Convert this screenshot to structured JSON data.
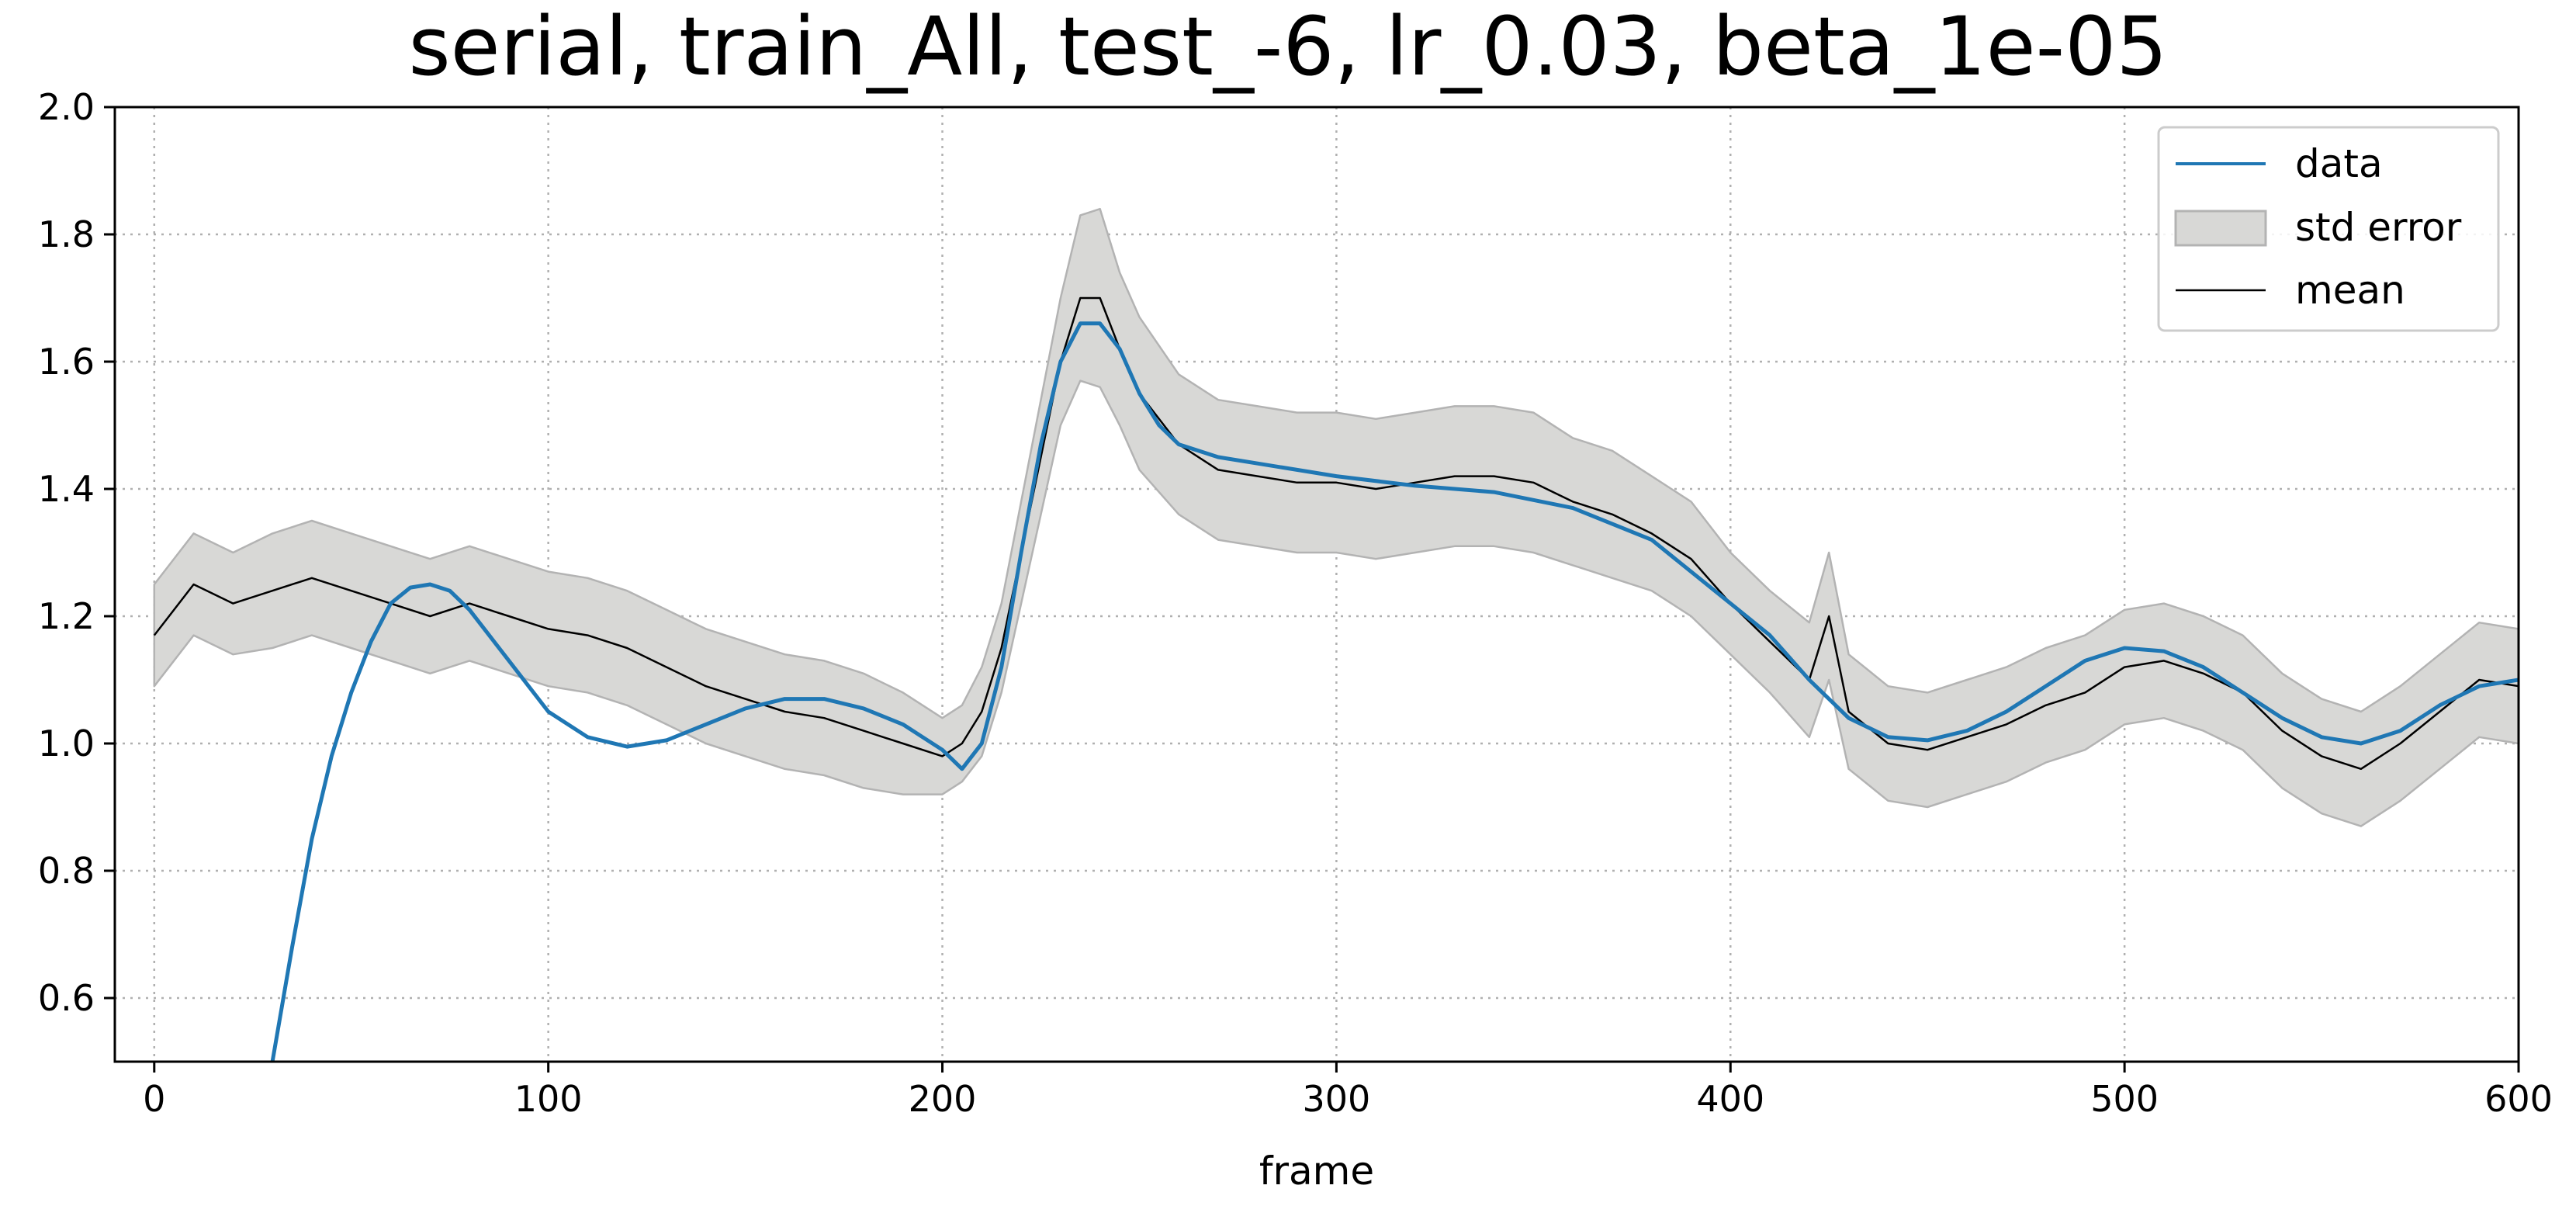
{
  "chart_data": {
    "type": "line",
    "title": "serial, train_All, test_-6, lr_0.03, beta_1e-05",
    "xlabel": "frame",
    "ylabel": "",
    "xlim": [
      -10,
      600
    ],
    "ylim": [
      0.5,
      2.0
    ],
    "x_ticks": [
      "0",
      "100",
      "200",
      "300",
      "400",
      "500",
      "600"
    ],
    "y_ticks": [
      "0.6",
      "0.8",
      "1.0",
      "1.2",
      "1.4",
      "1.6",
      "1.8",
      "2.0"
    ],
    "grid": true,
    "legend_position": "top-right",
    "legend": [
      "data",
      "std error",
      "mean"
    ],
    "colors": {
      "data": "#1f77b4",
      "std_error_fill": "#d8d8d6",
      "std_error_edge": "#b3b3b3",
      "mean": "#000000"
    },
    "series": [
      {
        "name": "data",
        "x": [
          30,
          35,
          40,
          45,
          50,
          55,
          60,
          65,
          70,
          75,
          80,
          90,
          100,
          110,
          120,
          130,
          140,
          150,
          160,
          170,
          180,
          190,
          195,
          200,
          205,
          210,
          215,
          220,
          225,
          230,
          235,
          240,
          245,
          250,
          255,
          260,
          270,
          280,
          290,
          300,
          320,
          340,
          360,
          380,
          400,
          410,
          420,
          430,
          440,
          450,
          460,
          470,
          480,
          490,
          500,
          510,
          520,
          530,
          540,
          550,
          560,
          570,
          580,
          590,
          600
        ],
        "y": [
          0.5,
          0.68,
          0.85,
          0.98,
          1.08,
          1.16,
          1.22,
          1.245,
          1.25,
          1.24,
          1.21,
          1.13,
          1.05,
          1.01,
          0.995,
          1.005,
          1.03,
          1.055,
          1.07,
          1.07,
          1.055,
          1.03,
          1.01,
          0.99,
          0.96,
          1.0,
          1.12,
          1.3,
          1.47,
          1.6,
          1.66,
          1.66,
          1.62,
          1.55,
          1.5,
          1.47,
          1.45,
          1.44,
          1.43,
          1.42,
          1.405,
          1.395,
          1.37,
          1.32,
          1.22,
          1.17,
          1.1,
          1.04,
          1.01,
          1.005,
          1.02,
          1.05,
          1.09,
          1.13,
          1.15,
          1.145,
          1.12,
          1.08,
          1.04,
          1.01,
          1.0,
          1.02,
          1.06,
          1.09,
          1.1
        ]
      },
      {
        "name": "mean",
        "x": [
          0,
          10,
          20,
          30,
          40,
          50,
          60,
          70,
          80,
          90,
          100,
          110,
          120,
          130,
          140,
          150,
          160,
          170,
          180,
          190,
          200,
          205,
          210,
          215,
          220,
          225,
          230,
          235,
          240,
          245,
          250,
          260,
          270,
          280,
          290,
          300,
          310,
          320,
          330,
          340,
          350,
          360,
          370,
          380,
          390,
          400,
          410,
          420,
          425,
          430,
          440,
          450,
          460,
          470,
          480,
          490,
          500,
          510,
          520,
          530,
          540,
          550,
          560,
          570,
          580,
          590,
          600
        ],
        "y": [
          1.17,
          1.25,
          1.22,
          1.24,
          1.26,
          1.24,
          1.22,
          1.2,
          1.22,
          1.2,
          1.18,
          1.17,
          1.15,
          1.12,
          1.09,
          1.07,
          1.05,
          1.04,
          1.02,
          1.0,
          0.98,
          1.0,
          1.05,
          1.15,
          1.3,
          1.45,
          1.6,
          1.7,
          1.7,
          1.62,
          1.55,
          1.47,
          1.43,
          1.42,
          1.41,
          1.41,
          1.4,
          1.41,
          1.42,
          1.42,
          1.41,
          1.38,
          1.36,
          1.33,
          1.29,
          1.22,
          1.16,
          1.1,
          1.2,
          1.05,
          1.0,
          0.99,
          1.01,
          1.03,
          1.06,
          1.08,
          1.12,
          1.13,
          1.11,
          1.08,
          1.02,
          0.98,
          0.96,
          1.0,
          1.05,
          1.1,
          1.09
        ]
      },
      {
        "name": "std error",
        "x": [
          0,
          10,
          20,
          30,
          40,
          50,
          60,
          70,
          80,
          90,
          100,
          110,
          120,
          130,
          140,
          150,
          160,
          170,
          180,
          190,
          200,
          205,
          210,
          215,
          220,
          225,
          230,
          235,
          240,
          245,
          250,
          260,
          270,
          280,
          290,
          300,
          310,
          320,
          330,
          340,
          350,
          360,
          370,
          380,
          390,
          400,
          410,
          420,
          425,
          430,
          440,
          450,
          460,
          470,
          480,
          490,
          500,
          510,
          520,
          530,
          540,
          550,
          560,
          570,
          580,
          590,
          600
        ],
        "lower": [
          1.09,
          1.17,
          1.14,
          1.15,
          1.17,
          1.15,
          1.13,
          1.11,
          1.13,
          1.11,
          1.09,
          1.08,
          1.06,
          1.03,
          1.0,
          0.98,
          0.96,
          0.95,
          0.93,
          0.92,
          0.92,
          0.94,
          0.98,
          1.08,
          1.22,
          1.36,
          1.5,
          1.57,
          1.56,
          1.5,
          1.43,
          1.36,
          1.32,
          1.31,
          1.3,
          1.3,
          1.29,
          1.3,
          1.31,
          1.31,
          1.3,
          1.28,
          1.26,
          1.24,
          1.2,
          1.14,
          1.08,
          1.01,
          1.1,
          0.96,
          0.91,
          0.9,
          0.92,
          0.94,
          0.97,
          0.99,
          1.03,
          1.04,
          1.02,
          0.99,
          0.93,
          0.89,
          0.87,
          0.91,
          0.96,
          1.01,
          1.0
        ],
        "upper": [
          1.25,
          1.33,
          1.3,
          1.33,
          1.35,
          1.33,
          1.31,
          1.29,
          1.31,
          1.29,
          1.27,
          1.26,
          1.24,
          1.21,
          1.18,
          1.16,
          1.14,
          1.13,
          1.11,
          1.08,
          1.04,
          1.06,
          1.12,
          1.22,
          1.38,
          1.54,
          1.7,
          1.83,
          1.84,
          1.74,
          1.67,
          1.58,
          1.54,
          1.53,
          1.52,
          1.52,
          1.51,
          1.52,
          1.53,
          1.53,
          1.52,
          1.48,
          1.46,
          1.42,
          1.38,
          1.3,
          1.24,
          1.19,
          1.3,
          1.14,
          1.09,
          1.08,
          1.1,
          1.12,
          1.15,
          1.17,
          1.21,
          1.22,
          1.2,
          1.17,
          1.11,
          1.07,
          1.05,
          1.09,
          1.14,
          1.19,
          1.18
        ]
      }
    ]
  }
}
